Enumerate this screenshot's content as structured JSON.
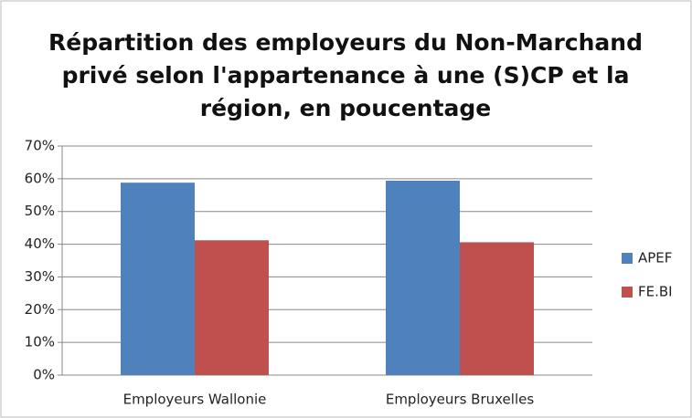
{
  "chart_data": {
    "type": "bar",
    "title": [
      "Répartition des employeurs du Non-Marchand",
      "privé selon l'appartenance  à une (S)CP et la",
      "région, en poucentage"
    ],
    "categories": [
      "Employeurs Wallonie",
      "Employeurs Bruxelles"
    ],
    "series": [
      {
        "name": "APEF",
        "color": "#4f81bd",
        "values": [
          58.8,
          59.4
        ]
      },
      {
        "name": "FE.BI",
        "color": "#c0504d",
        "values": [
          41.2,
          40.6
        ]
      }
    ],
    "ylim": [
      0,
      70
    ],
    "yticks": [
      {
        "value": 0,
        "label": "0%"
      },
      {
        "value": 10,
        "label": "10%"
      },
      {
        "value": 20,
        "label": "20%"
      },
      {
        "value": 30,
        "label": "30%"
      },
      {
        "value": 40,
        "label": "40%"
      },
      {
        "value": 50,
        "label": "50%"
      },
      {
        "value": 60,
        "label": "60%"
      },
      {
        "value": 70,
        "label": "70%"
      }
    ],
    "grid": true,
    "legend": "right"
  }
}
